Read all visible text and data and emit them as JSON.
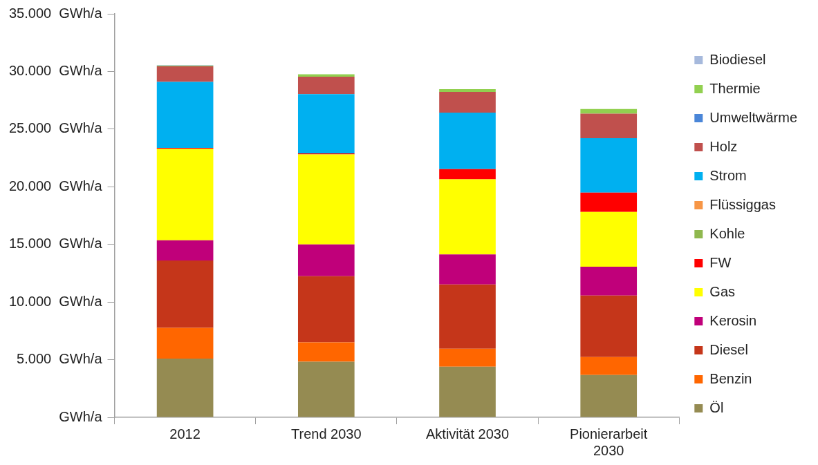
{
  "chart_data": {
    "type": "bar",
    "stacked": true,
    "categories": [
      "2012",
      "Trend 2030",
      "Aktivität 2030",
      "Pionierarbeit 2030"
    ],
    "ylim": [
      0,
      35000
    ],
    "yticks": [
      {
        "value": 0,
        "label": "GWh/a"
      },
      {
        "value": 5000,
        "label": "5.000  GWh/a"
      },
      {
        "value": 10000,
        "label": "10.000  GWh/a"
      },
      {
        "value": 15000,
        "label": "15.000  GWh/a"
      },
      {
        "value": 20000,
        "label": "20.000  GWh/a"
      },
      {
        "value": 25000,
        "label": "25.000  GWh/a"
      },
      {
        "value": 30000,
        "label": "30.000  GWh/a"
      },
      {
        "value": 35000,
        "label": "35.000  GWh/a"
      }
    ],
    "grid": false,
    "legend": "right",
    "series": [
      {
        "name": "Öl",
        "color": "#958b52",
        "values": [
          5100,
          4820,
          4390,
          3670
        ]
      },
      {
        "name": "Benzin",
        "color": "#ff6600",
        "values": [
          2660,
          1680,
          1560,
          1560
        ]
      },
      {
        "name": "Diesel",
        "color": "#c5361a",
        "values": [
          5840,
          5740,
          5570,
          5330
        ]
      },
      {
        "name": "Kerosin",
        "color": "#c0007a",
        "values": [
          1750,
          2760,
          2610,
          2500
        ]
      },
      {
        "name": "Gas",
        "color": "#ffff00",
        "values": [
          7930,
          7800,
          6520,
          4760
        ]
      },
      {
        "name": "FW",
        "color": "#ff0000",
        "values": [
          100,
          100,
          880,
          1680
        ]
      },
      {
        "name": "Kohle",
        "color": "#8fb84e",
        "values": [
          0,
          0,
          0,
          0
        ]
      },
      {
        "name": "Flüssiggas",
        "color": "#f79646",
        "values": [
          0,
          0,
          0,
          0
        ]
      },
      {
        "name": "Strom",
        "color": "#00b0f0",
        "values": [
          5720,
          5130,
          4900,
          4710
        ]
      },
      {
        "name": "Holz",
        "color": "#c0504d",
        "values": [
          1350,
          1510,
          1800,
          2130
        ]
      },
      {
        "name": "Umweltwärme",
        "color": "#4a86d8",
        "values": [
          0,
          0,
          0,
          0
        ]
      },
      {
        "name": "Thermie",
        "color": "#92d050",
        "values": [
          60,
          210,
          240,
          410
        ]
      },
      {
        "name": "Biodiesel",
        "color": "#a6b9dc",
        "values": [
          40,
          null,
          null,
          null
        ]
      }
    ]
  }
}
